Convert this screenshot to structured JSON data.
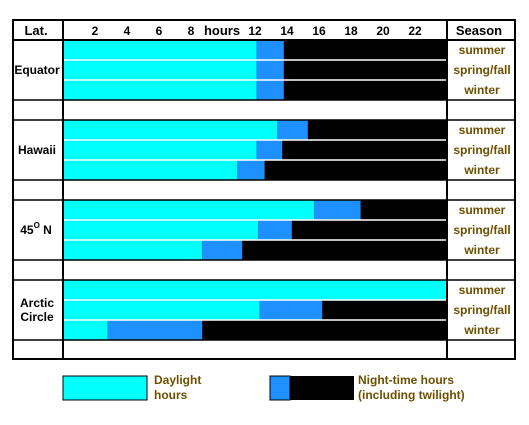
{
  "header": {
    "lat_label": "Lat.",
    "hours_label": "hours",
    "season_label": "Season"
  },
  "colors": {
    "daylight": "#00ffff",
    "twilight": "#1e90ff",
    "night": "#000000",
    "season_text": "#6b5000"
  },
  "chart_data": {
    "type": "bar",
    "orientation": "horizontal-stacked",
    "x_ticks": [
      2,
      4,
      6,
      8,
      12,
      14,
      16,
      18,
      20,
      22
    ],
    "xlim": [
      0,
      24
    ],
    "groups": [
      {
        "name": "Equator",
        "name_lines": [
          "Equator"
        ],
        "rows": [
          {
            "season": "summer",
            "daylight": 12.1,
            "twilight": 1.7
          },
          {
            "season": "spring/fall",
            "daylight": 12.1,
            "twilight": 1.7
          },
          {
            "season": "winter",
            "daylight": 12.1,
            "twilight": 1.7
          }
        ]
      },
      {
        "name": "Hawaii",
        "name_lines": [
          "Hawaii"
        ],
        "rows": [
          {
            "season": "summer",
            "daylight": 13.4,
            "twilight": 1.9
          },
          {
            "season": "spring/fall",
            "daylight": 12.1,
            "twilight": 1.6
          },
          {
            "season": "winter",
            "daylight": 10.9,
            "twilight": 1.7
          }
        ]
      },
      {
        "name": "45° N",
        "name_lines": [
          "45",
          "O",
          "N"
        ],
        "rows": [
          {
            "season": "summer",
            "daylight": 15.7,
            "twilight": 2.9
          },
          {
            "season": "spring/fall",
            "daylight": 12.2,
            "twilight": 2.1
          },
          {
            "season": "winter",
            "daylight": 8.7,
            "twilight": 2.5
          }
        ]
      },
      {
        "name": "Arctic Circle",
        "name_lines": [
          "Arctic",
          "Circle"
        ],
        "rows": [
          {
            "season": "summer",
            "daylight": 24.0,
            "twilight": 0.0
          },
          {
            "season": "spring/fall",
            "daylight": 12.3,
            "twilight": 3.9
          },
          {
            "season": "winter",
            "daylight": 2.8,
            "twilight": 5.9
          }
        ]
      }
    ]
  },
  "legend": {
    "daylight_line1": "Daylight",
    "daylight_line2": "hours",
    "night_line1": "Night-time hours",
    "night_line2": "(including twilight)"
  }
}
